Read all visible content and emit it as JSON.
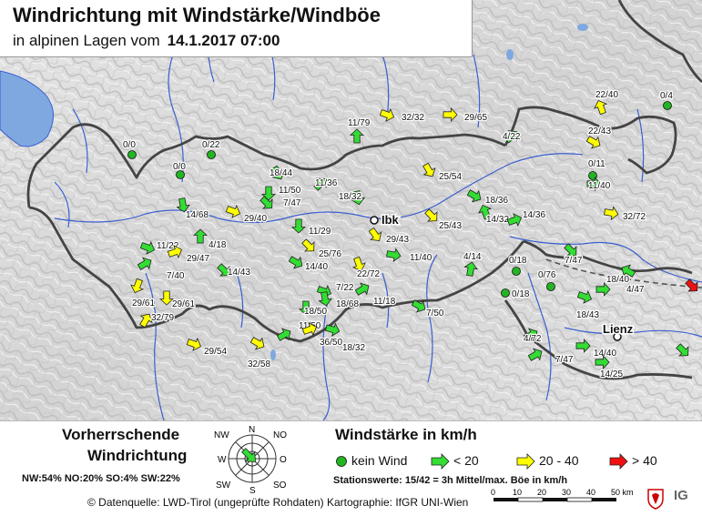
{
  "title": "Windrichtung mit Windstärke/Windböe",
  "subtitle_prefix": "in alpinen Lagen vom",
  "subtitle_date": "14.1.2017 07:00",
  "colors": {
    "calm": "#22b522",
    "low": "#33dd33",
    "mid": "#ffff00",
    "high": "#ee1111",
    "lake": "#7fa8e0",
    "river": "#3a5fd0",
    "border": "#444444"
  },
  "city_labels": [
    "Ibk",
    "Lienz"
  ],
  "stations": [
    {
      "label": "0/0",
      "kind": "calm"
    },
    {
      "label": "0/22",
      "kind": "calm"
    },
    {
      "label": "0/0",
      "kind": "calm"
    },
    {
      "label": "18/44",
      "kind": "low"
    },
    {
      "label": "11/79",
      "kind": "low"
    },
    {
      "label": "32/32",
      "kind": "mid"
    },
    {
      "label": "29/65",
      "kind": "mid"
    },
    {
      "label": "4/22",
      "kind": "low"
    },
    {
      "label": "22/40",
      "kind": "mid"
    },
    {
      "label": "0/4",
      "kind": "calm"
    },
    {
      "label": "22/43",
      "kind": "mid"
    },
    {
      "label": "0/11",
      "kind": "calm"
    },
    {
      "label": "11/50",
      "kind": "low"
    },
    {
      "label": "11/36",
      "kind": "low"
    },
    {
      "label": "7/47",
      "kind": "low"
    },
    {
      "label": "18/32",
      "kind": "low"
    },
    {
      "label": "25/54",
      "kind": "mid"
    },
    {
      "label": "11/40",
      "kind": "low"
    },
    {
      "label": "18/36",
      "kind": "low"
    },
    {
      "label": "14/68",
      "kind": "low"
    },
    {
      "label": "29/40",
      "kind": "mid"
    },
    {
      "label": "14/32",
      "kind": "low"
    },
    {
      "label": "14/36",
      "kind": "low"
    },
    {
      "label": "32/72",
      "kind": "mid"
    },
    {
      "label": "25/43",
      "kind": "mid"
    },
    {
      "label": "11/29",
      "kind": "low"
    },
    {
      "label": "29/43",
      "kind": "mid"
    },
    {
      "label": "11/22",
      "kind": "low"
    },
    {
      "label": "4/18",
      "kind": "low"
    },
    {
      "label": "25/76",
      "kind": "mid"
    },
    {
      "label": "29/47",
      "kind": "mid"
    },
    {
      "label": "7/40",
      "kind": "low"
    },
    {
      "label": "14/43",
      "kind": "low"
    },
    {
      "label": "14/40",
      "kind": "low"
    },
    {
      "label": "11/40",
      "kind": "low"
    },
    {
      "label": "22/72",
      "kind": "mid"
    },
    {
      "label": "4/14",
      "kind": "low"
    },
    {
      "label": "0/18",
      "kind": "calm"
    },
    {
      "label": "7/47",
      "kind": "low"
    },
    {
      "label": "0/76",
      "kind": "calm"
    },
    {
      "label": "29/61",
      "kind": "mid"
    },
    {
      "label": "29/61",
      "kind": "mid"
    },
    {
      "label": "7/22",
      "kind": "low"
    },
    {
      "label": "18/68",
      "kind": "low"
    },
    {
      "label": "11/18",
      "kind": "low"
    },
    {
      "label": "0/18",
      "kind": "calm"
    },
    {
      "label": "18/40",
      "kind": "low"
    },
    {
      "label": "4/47",
      "kind": "low"
    },
    {
      "label": "32/79",
      "kind": "mid"
    },
    {
      "label": "18/50",
      "kind": "low"
    },
    {
      "label": "7/50",
      "kind": "low"
    },
    {
      "label": "18/43",
      "kind": "low"
    },
    {
      "label": "11/50",
      "kind": "low"
    },
    {
      "label": "36/50",
      "kind": "mid"
    },
    {
      "label": "18/32",
      "kind": "low"
    },
    {
      "label": "4/72",
      "kind": "low"
    },
    {
      "label": "14/40",
      "kind": "low"
    },
    {
      "label": "29/54",
      "kind": "mid"
    },
    {
      "label": "32/58",
      "kind": "mid"
    },
    {
      "label": "7/47",
      "kind": "low"
    },
    {
      "label": "14/25",
      "kind": "low"
    },
    {
      "label": "",
      "kind": "high"
    },
    {
      "label": "",
      "kind": "low"
    }
  ],
  "legend": {
    "heading_line1": "Vorherrschende",
    "heading_line2": "Windrichtung",
    "percentages": "NW:54%  NO:20%  SO:4%  SW:22%",
    "rose_labels": {
      "N": "N",
      "NO": "NO",
      "O": "O",
      "SO": "SO",
      "S": "S",
      "SW": "SW",
      "W": "W",
      "NW": "NW"
    },
    "rose_arrow_icon": "arrow-southeast-icon",
    "speed_heading": "Windstärke in km/h",
    "calm_label": "kein Wind",
    "low_label": "< 20",
    "mid_label": "20 - 40",
    "high_label": "> 40",
    "station_values": "Stationswerte: 15/42  = 3h Mittel/max. Böe in km/h",
    "footer": "© Datenquelle: LWD-Tirol (ungeprüfte Rohdaten) Kartographie: IfGR UNI-Wien",
    "scale_ticks": [
      "0",
      "10",
      "20",
      "30",
      "40",
      "50 km"
    ],
    "logo_text": "IG"
  }
}
